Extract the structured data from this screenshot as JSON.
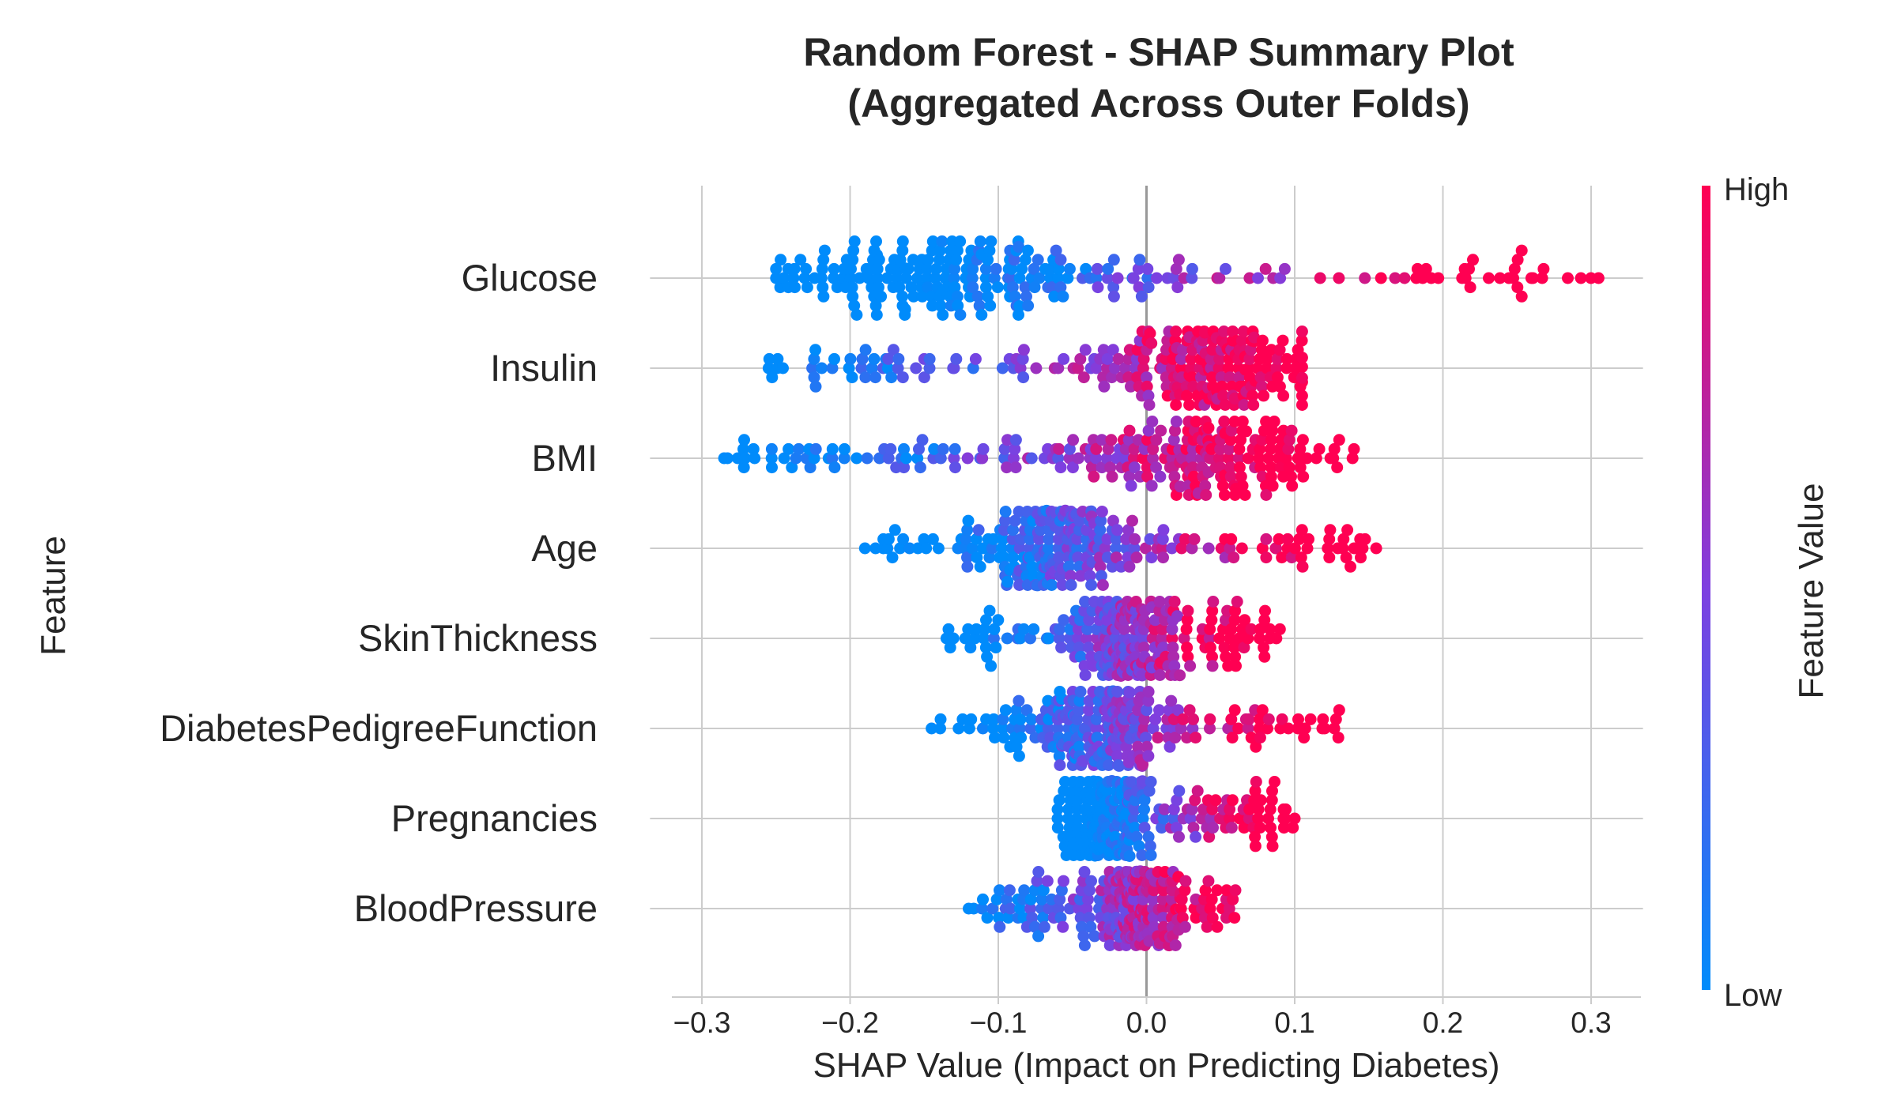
{
  "chart_data": {
    "type": "scatter",
    "subtype": "shap-beeswarm",
    "title_lines": [
      "Random Forest - SHAP Summary Plot",
      "(Aggregated Across Outer Folds)"
    ],
    "xlabel": "SHAP Value (Impact on Predicting Diabetes)",
    "ylabel": "Feature",
    "xlim": [
      -0.335,
      0.335
    ],
    "xticks": [
      -0.3,
      -0.2,
      -0.1,
      0.0,
      0.1,
      0.2,
      0.3
    ],
    "xtick_labels": [
      "−0.3",
      "−0.2",
      "−0.1",
      "0.0",
      "0.1",
      "0.2",
      "0.3"
    ],
    "grid": true,
    "colorbar": {
      "label": "Feature Value",
      "high_label": "High",
      "low_label": "Low",
      "low_color": "#008bfb",
      "mid_color": "#7e3fe0",
      "high_color": "#ff0052"
    },
    "features": [
      {
        "name": "Glucose",
        "x_min": -0.25,
        "x_max": 0.305,
        "peak": -0.14,
        "skew": 1.0
      },
      {
        "name": "Insulin",
        "x_min": -0.255,
        "x_max": 0.105,
        "peak": 0.045,
        "skew": 0.6
      },
      {
        "name": "BMI",
        "x_min": -0.285,
        "x_max": 0.14,
        "peak": 0.035,
        "skew": 0.7
      },
      {
        "name": "Age",
        "x_min": -0.19,
        "x_max": 0.155,
        "peak": -0.055,
        "skew": 0.75
      },
      {
        "name": "SkinThickness",
        "x_min": -0.135,
        "x_max": 0.09,
        "peak": -0.01,
        "skew": 0.7
      },
      {
        "name": "DiabetesPedigreeFunction",
        "x_min": -0.145,
        "x_max": 0.13,
        "peak": -0.03,
        "skew": 0.8
      },
      {
        "name": "Pregnancies",
        "x_min": -0.06,
        "x_max": 0.1,
        "peak": -0.025,
        "skew": 0.85
      },
      {
        "name": "BloodPressure",
        "x_min": -0.12,
        "x_max": 0.06,
        "peak": -0.005,
        "skew": 0.55
      }
    ]
  }
}
